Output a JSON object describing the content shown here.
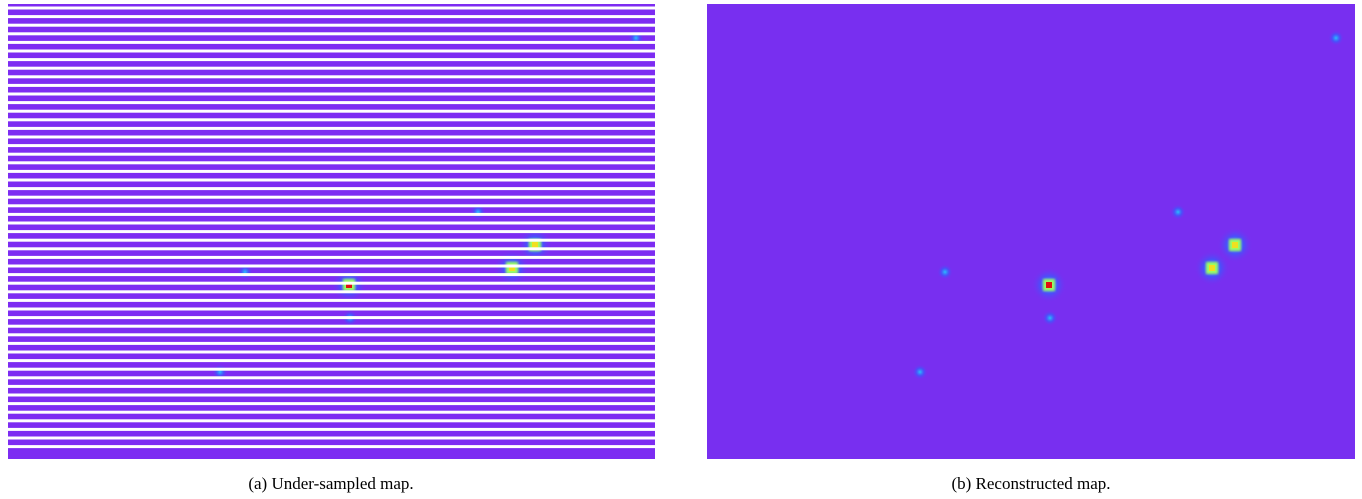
{
  "figure": {
    "panels": [
      {
        "caption": "(a) Under-sampled map."
      },
      {
        "caption": "(b) Reconstructed map."
      }
    ]
  }
}
